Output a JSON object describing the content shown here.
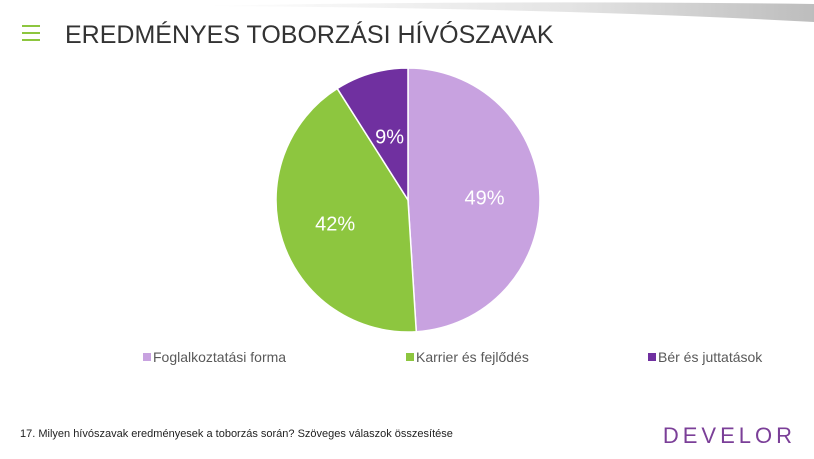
{
  "chart_data": {
    "type": "pie",
    "title": "EREDMÉNYES TOBORZÁSI HÍVÓSZAVAK",
    "categories": [
      "Foglalkoztatási forma",
      "Karrier és fejlődés",
      "Bér és juttatások"
    ],
    "values": [
      49,
      42,
      9
    ],
    "value_labels": [
      "49%",
      "42%",
      "9%"
    ],
    "colors": [
      "#c8a2e0",
      "#8dc63f",
      "#7030a0"
    ],
    "legend": "bottom"
  },
  "footnote": "17. Milyen hívószavak eredményesek a toborzás során? Szöveges válaszok összesítése",
  "logo": "DEVELOR"
}
